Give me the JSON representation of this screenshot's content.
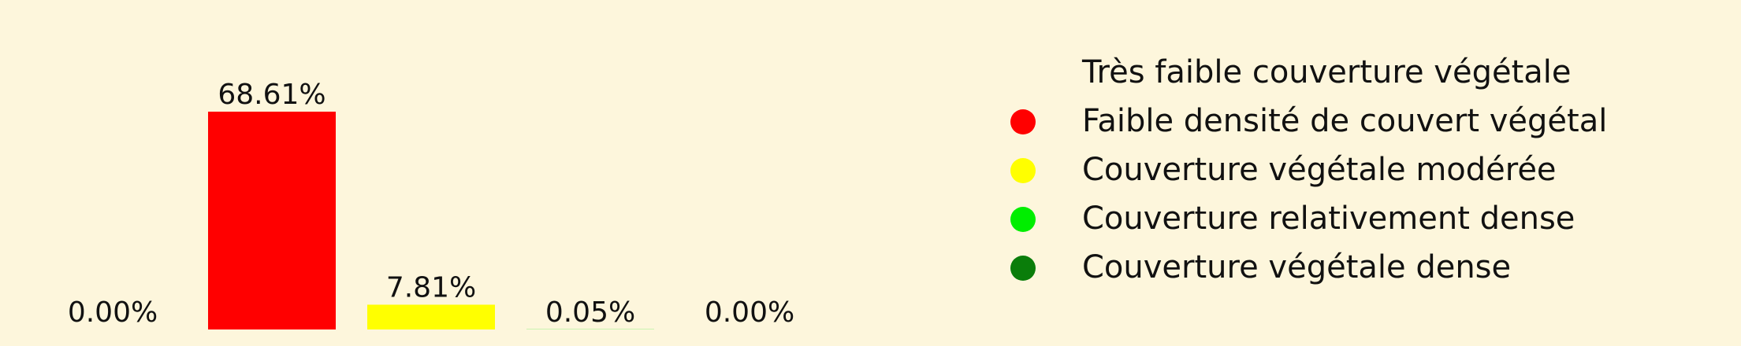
{
  "chart_data": {
    "type": "bar",
    "categories": [
      "Très faible couverture végétale",
      "Faible densité de couvert végétal",
      "Couverture végétale modérée",
      "Couverture relativement dense",
      "Couverture végétale dense"
    ],
    "values": [
      0.0,
      68.61,
      7.81,
      0.05,
      0.0
    ],
    "data_labels": [
      "0.00%",
      "68.61%",
      "7.81%",
      "0.05%",
      "0.00%"
    ],
    "colors": [
      "#fdf6dc",
      "#ff0000",
      "#ffff00",
      "#00ee00",
      "#0a7d0a"
    ],
    "ylim": [
      0,
      70
    ],
    "grid": false,
    "legend": {
      "placement": "right",
      "entries": [
        "Très faible couverture végétale",
        "Faible densité de couvert végétal",
        "Couverture végétale modérée",
        "Couverture relativement dense",
        "Couverture végétale dense"
      ]
    }
  }
}
